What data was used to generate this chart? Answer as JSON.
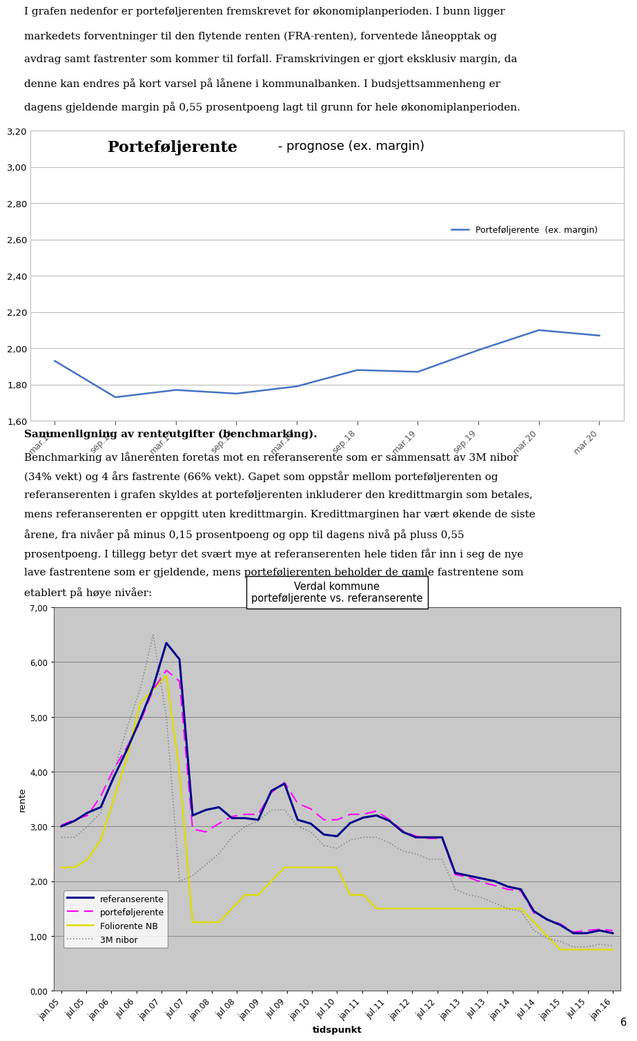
{
  "text1_lines": [
    "I grafen nedenfor er porteføljerenten fremskrevet for økonomiplanperioden. I bunn ligger",
    "markedets forventninger til den flytende renten (FRA-renten), forventede låneopptak og",
    "avdrag samt fastrenter som kommer til forfall. Framskrivingen er gjort eksklusiv margin, da",
    "denne kan endres på kort varsel på lånene i kommunalbanken. I budsjettsammenheng er",
    "dagens gjeldende margin på 0,55 prosentpoeng lagt til grunn for hele økonomiplanperioden."
  ],
  "chart1_title_bold": "Porteføljerente",
  "chart1_title_normal": " - prognose (ex. margin)",
  "chart1_xlabels": [
    "mar.16",
    "sep.16",
    "mar.17",
    "sep.17",
    "mar.18",
    "sep.18",
    "mar.19",
    "sep.19",
    "mar.20"
  ],
  "chart1_ylim": [
    1.6,
    3.2
  ],
  "chart1_yticks": [
    1.6,
    1.8,
    2.0,
    2.2,
    2.4,
    2.6,
    2.8,
    3.0,
    3.2
  ],
  "chart1_yticklabels": [
    "1,60",
    "1,80",
    "2,00",
    "2,20",
    "2,40",
    "2,60",
    "2,80",
    "3,00",
    "3,20"
  ],
  "chart1_data": [
    1.93,
    1.73,
    1.77,
    1.75,
    1.79,
    1.88,
    1.87,
    1.99,
    2.1,
    2.07
  ],
  "chart1_legend": "Porteføljerente  (ex. margin)",
  "chart1_line_color": "#4472C4",
  "text2_bold": "Sammenligning av renteutgifter (benchmarking).",
  "text2_lines": [
    "Benchmarking av lånerenten foretas mot en referanserente som er sammensatt av 3M nibor",
    "(34% vekt) og 4 års fastrente (66% vekt). Gapet som oppstår mellom porteføljerenten og",
    "referanserenten i grafen skyldes at porteføljerenten inkluderer den kredittmargin som betales,",
    "mens referanserenten er oppgitt uten kredittmargin. Kredittmarginen har vært økende de siste",
    "årene, fra nivåer på minus 0,15 prosentpoeng og opp til dagens nivå på pluss 0,55",
    "prosentpoeng. I tillegg betyr det svært mye at referanserenten hele tiden får inn i seg de nye",
    "lave fastrentene som er gjeldende, mens porteføljerenten beholder de gamle fastrentene som",
    "etablert på høye nivåer:"
  ],
  "chart2_title_line1": "Verdal kommune",
  "chart2_title_line2": "porteføljerente vs. referanserente",
  "chart2_ylabel": "rente",
  "chart2_xlabel": "tidspunkt",
  "chart2_ylim": [
    0.0,
    7.0
  ],
  "chart2_yticks": [
    0.0,
    1.0,
    2.0,
    3.0,
    4.0,
    5.0,
    6.0,
    7.0
  ],
  "chart2_yticklabels": [
    "0,00",
    "1,00",
    "2,00",
    "3,00",
    "4,00",
    "5,00",
    "6,00",
    "7,00"
  ],
  "chart2_xlabels": [
    "jan.05",
    "jul.05",
    "jan.06",
    "jul.06",
    "jan.07",
    "jul.07",
    "jan.08",
    "jul.08",
    "jan.09",
    "jul.09",
    "jan.10",
    "jul.10",
    "jan.11",
    "jul.11",
    "jan.12",
    "jul.12",
    "jan.13",
    "jul.13",
    "jan.14",
    "jul.14",
    "jan.15",
    "jul.15",
    "jan.16"
  ],
  "ref_data": [
    3.0,
    3.1,
    3.25,
    3.35,
    3.9,
    4.4,
    4.95,
    5.55,
    6.35,
    6.05,
    3.2,
    3.3,
    3.35,
    3.15,
    3.15,
    3.12,
    3.65,
    3.78,
    3.12,
    3.05,
    2.85,
    2.82,
    3.06,
    3.16,
    3.2,
    3.1,
    2.9,
    2.8,
    2.8,
    2.8,
    2.15,
    2.1,
    2.05,
    2.0,
    1.9,
    1.85,
    1.45,
    1.3,
    1.2,
    1.05,
    1.05,
    1.1,
    1.05
  ],
  "port_data": [
    3.02,
    3.12,
    3.2,
    3.55,
    4.05,
    4.45,
    4.9,
    5.5,
    5.85,
    5.65,
    2.95,
    2.9,
    3.05,
    3.18,
    3.22,
    3.22,
    3.62,
    3.8,
    3.42,
    3.32,
    3.12,
    3.12,
    3.22,
    3.22,
    3.28,
    3.12,
    2.92,
    2.82,
    2.78,
    2.78,
    2.12,
    2.07,
    1.98,
    1.92,
    1.85,
    1.82,
    1.42,
    1.3,
    1.22,
    1.07,
    1.1,
    1.12,
    1.1
  ],
  "folio_data": [
    2.25,
    2.25,
    2.4,
    2.75,
    3.5,
    4.25,
    5.25,
    5.5,
    5.75,
    4.0,
    1.25,
    1.25,
    1.25,
    1.5,
    1.75,
    1.75,
    2.0,
    2.25,
    2.25,
    2.25,
    2.25,
    2.25,
    1.75,
    1.75,
    1.5,
    1.5,
    1.5,
    1.5,
    1.5,
    1.5,
    1.5,
    1.5,
    1.5,
    1.5,
    1.5,
    1.5,
    1.25,
    1.0,
    0.75,
    0.75,
    0.75,
    0.75,
    0.75
  ],
  "nibor_data": [
    2.8,
    2.8,
    3.0,
    3.25,
    4.0,
    4.8,
    5.5,
    6.5,
    5.0,
    2.0,
    2.1,
    2.3,
    2.5,
    2.8,
    3.0,
    3.1,
    3.3,
    3.3,
    3.0,
    2.9,
    2.65,
    2.6,
    2.75,
    2.8,
    2.8,
    2.7,
    2.55,
    2.5,
    2.4,
    2.4,
    1.85,
    1.75,
    1.7,
    1.6,
    1.5,
    1.45,
    1.1,
    0.95,
    0.9,
    0.8,
    0.8,
    0.85,
    0.82
  ],
  "ref_color": "#00008B",
  "port_color": "#FF00FF",
  "folio_color": "#DDDD00",
  "nibor_color": "#888888",
  "page_number": "6"
}
